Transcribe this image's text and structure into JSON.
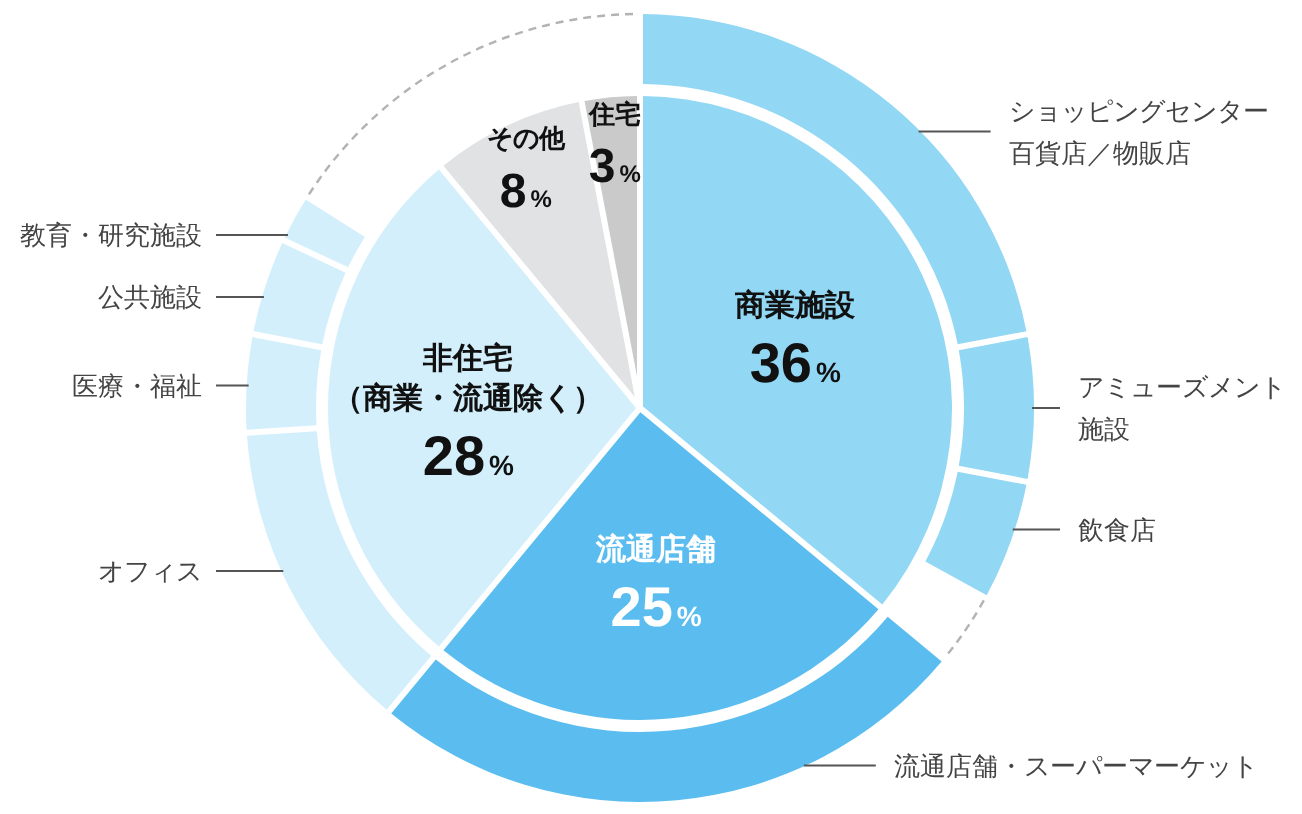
{
  "chart_data": [
    {
      "type": "pie",
      "categories": [
        "商業施設",
        "流通店舗",
        "非住宅（商業・流通除く）",
        "その他",
        "住宅"
      ],
      "values": [
        36,
        25,
        28,
        8,
        3
      ],
      "colors": [
        "#92d8f5",
        "#5bbdef",
        "#d3effc",
        "#e1e2e4",
        "#cacaca"
      ],
      "value_labels": [
        "36%",
        "25%",
        "28%",
        "8%",
        "3%"
      ]
    },
    {
      "type": "donut",
      "categories": [
        "ショッピングセンター百貨店／物販店",
        "アミューズメント施設",
        "飲食店",
        null,
        "流通店舗・スーパーマーケット",
        "オフィス",
        "医療・福祉",
        "公共施設",
        "教育・研究施設",
        null
      ],
      "values": [
        22,
        6,
        5,
        3,
        25,
        13,
        4,
        4,
        2,
        16
      ],
      "colors": [
        "#92d8f5",
        "#92d8f5",
        "#92d8f5",
        "#ffffff",
        "#5bbdef",
        "#d3effc",
        "#d3effc",
        "#d3effc",
        "#d3effc",
        "#ffffff"
      ]
    }
  ]
}
